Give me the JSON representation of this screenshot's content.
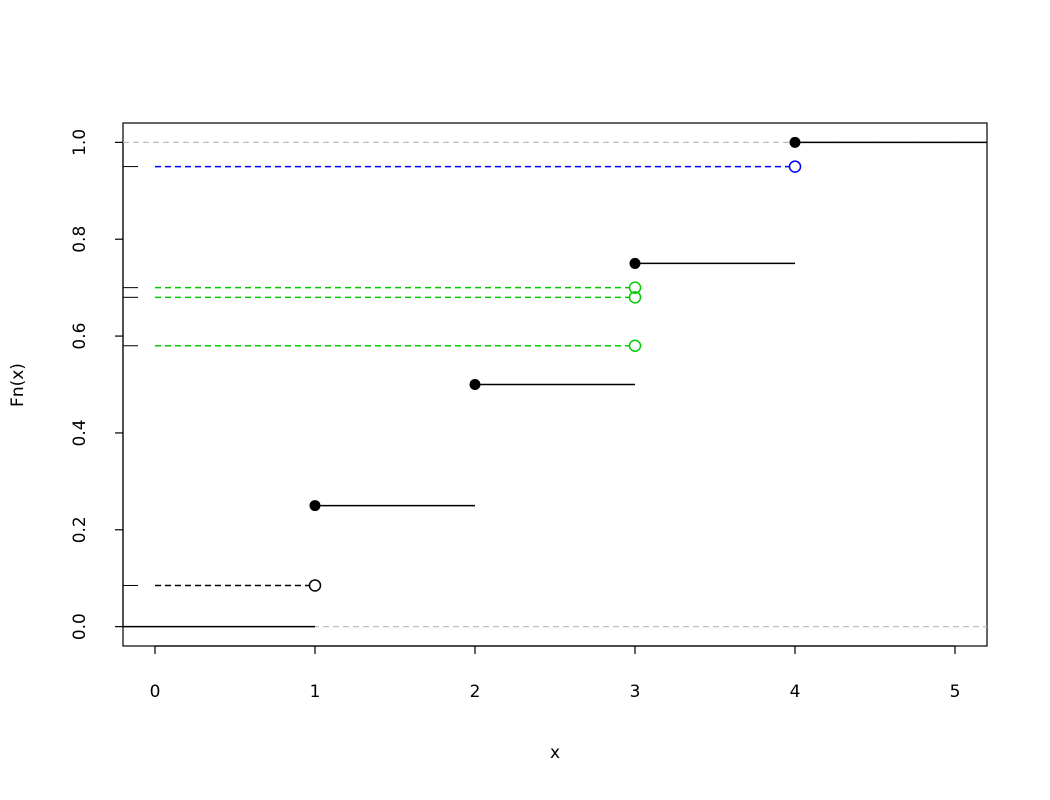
{
  "chart_data": {
    "type": "ecdf",
    "xlabel": "x",
    "ylabel": "Fn(x)",
    "xlim": [
      -0.2,
      5.2
    ],
    "ylim": [
      -0.04,
      1.04
    ],
    "xticks": [
      0,
      1,
      2,
      3,
      4,
      5
    ],
    "yticks": [
      {
        "value": 0,
        "label": "0.0"
      },
      {
        "value": 0.2,
        "label": "0.2"
      },
      {
        "value": 0.4,
        "label": "0.4"
      },
      {
        "value": 0.6,
        "label": "0.6"
      },
      {
        "value": 0.8,
        "label": "0.8"
      },
      {
        "value": 1,
        "label": "1.0"
      }
    ],
    "ecdf": {
      "x": [
        1,
        2,
        3,
        4
      ],
      "values": [
        0.25,
        0.5,
        0.75,
        1
      ],
      "start_value": 0,
      "color": "#000000"
    },
    "reference_lines": {
      "values": [
        0,
        1
      ],
      "color": "#bebebe"
    },
    "query_start_x": 0,
    "queries": [
      {
        "x": 1,
        "y": 0.085,
        "color": "#000000"
      },
      {
        "x": 3,
        "y": 0.7,
        "color": "#00cd00"
      },
      {
        "x": 3,
        "y": 0.68,
        "color": "#00cd00"
      },
      {
        "x": 3,
        "y": 0.58,
        "color": "#00cd00"
      },
      {
        "x": 4,
        "y": 0.95,
        "color": "#0000ff"
      }
    ]
  }
}
